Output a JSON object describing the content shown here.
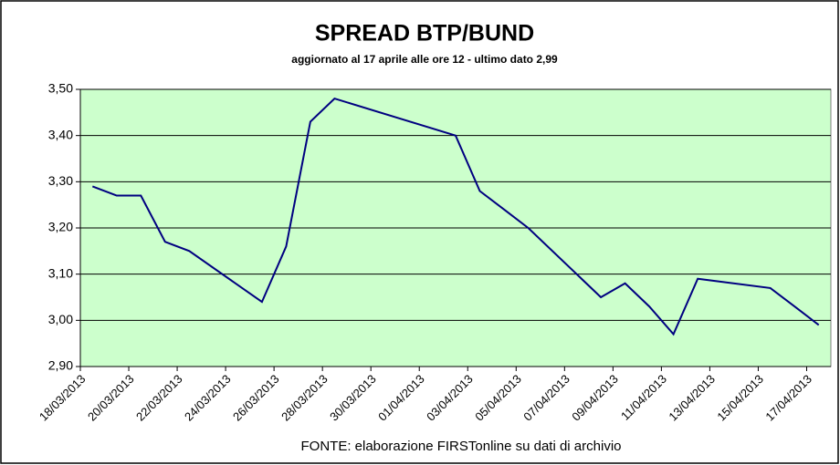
{
  "chart_data": {
    "type": "line",
    "title": "SPREAD  BTP/BUND",
    "subtitle": "aggiornato al 17 aprile alle ore 12 - ultimo dato 2,99",
    "source": "FONTE: elaborazione FIRSTonline su dati di archivio",
    "x": [
      "18/03/2013",
      "19/03/2013",
      "20/03/2013",
      "21/03/2013",
      "22/03/2013",
      "25/03/2013",
      "26/03/2013",
      "27/03/2013",
      "28/03/2013",
      "02/04/2013",
      "03/04/2013",
      "04/04/2013",
      "05/04/2013",
      "08/04/2013",
      "09/04/2013",
      "10/04/2013",
      "11/04/2013",
      "12/04/2013",
      "15/04/2013",
      "16/04/2013",
      "17/04/2013"
    ],
    "series": [
      {
        "color": "#000080",
        "values": [
          3.29,
          3.27,
          3.27,
          3.17,
          3.15,
          3.04,
          3.16,
          3.43,
          3.48,
          3.4,
          3.28,
          3.24,
          3.2,
          3.05,
          3.08,
          3.03,
          2.97,
          3.09,
          3.07,
          3.03,
          2.99
        ]
      }
    ],
    "xlim": [
      "18/03/2013",
      "18/04/2013"
    ],
    "xticks": [
      "18/03/2013",
      "20/03/2013",
      "22/03/2013",
      "24/03/2013",
      "26/03/2013",
      "28/03/2013",
      "30/03/2013",
      "01/04/2013",
      "03/04/2013",
      "05/04/2013",
      "07/04/2013",
      "09/04/2013",
      "11/04/2013",
      "13/04/2013",
      "15/04/2013",
      "17/04/2013"
    ],
    "ylim": [
      2.9,
      3.5
    ],
    "yticks": [
      {
        "value": 2.9,
        "label": "2,90"
      },
      {
        "value": 3.0,
        "label": "3,00"
      },
      {
        "value": 3.1,
        "label": "3,10"
      },
      {
        "value": 3.2,
        "label": "3,20"
      },
      {
        "value": 3.3,
        "label": "3,30"
      },
      {
        "value": 3.4,
        "label": "3,40"
      },
      {
        "value": 3.5,
        "label": "3,50"
      }
    ],
    "grid": true,
    "plot_background": "#ccffcc"
  }
}
